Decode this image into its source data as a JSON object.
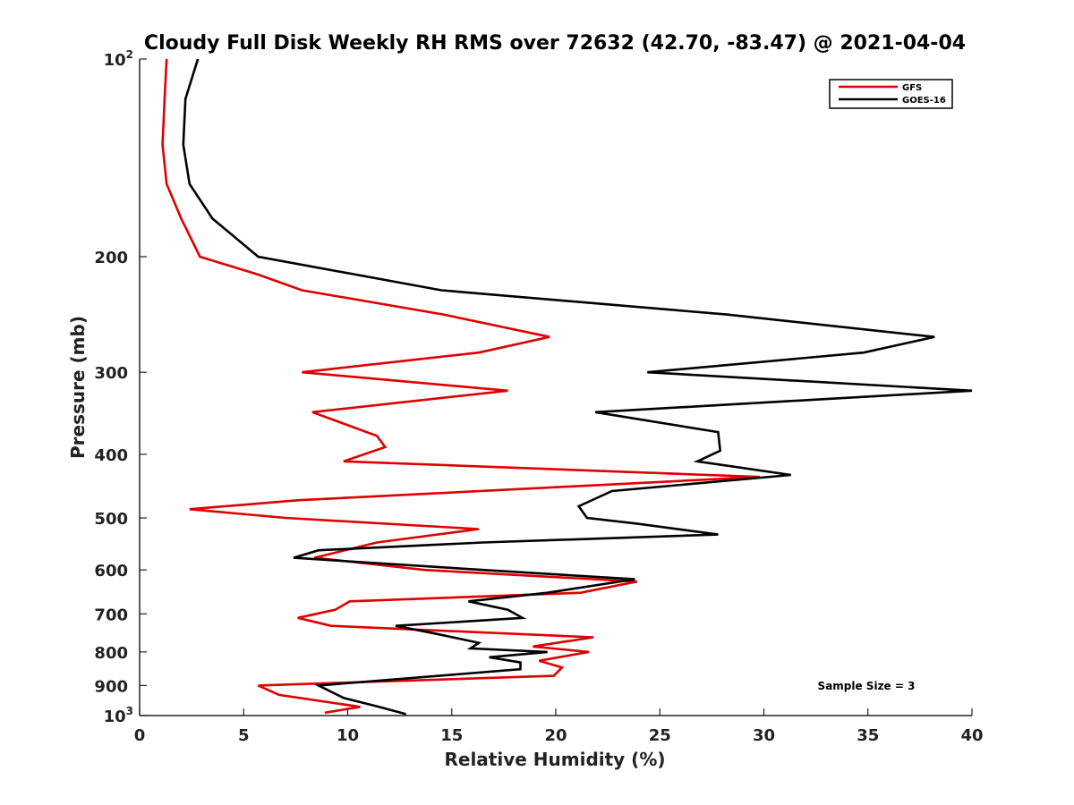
{
  "chart_data": {
    "type": "line",
    "title": "Cloudy Full Disk Weekly RH RMS over 72632 (42.70, -83.47) @ 2021-04-04",
    "xlabel": "Relative Humidity (%)",
    "ylabel": "Pressure (mb)",
    "xlim": [
      0,
      40
    ],
    "ylim": [
      100,
      1000
    ],
    "y_scale": "log",
    "y_reversed": true,
    "grid": false,
    "x_ticks": [
      "0",
      "5",
      "10",
      "15",
      "20",
      "25",
      "30",
      "35",
      "40"
    ],
    "y_ticks": [
      {
        "value": 100,
        "base": "10",
        "exp": "2"
      },
      {
        "value": 200,
        "label": "200"
      },
      {
        "value": 300,
        "label": "300"
      },
      {
        "value": 400,
        "label": "400"
      },
      {
        "value": 500,
        "label": "500"
      },
      {
        "value": 600,
        "label": "600"
      },
      {
        "value": 700,
        "label": "700"
      },
      {
        "value": 800,
        "label": "800"
      },
      {
        "value": 900,
        "label": "900"
      },
      {
        "value": 1000,
        "base": "10",
        "exp": "3"
      }
    ],
    "legend": {
      "placement": "top-right",
      "entries": [
        {
          "label": "GFS",
          "color": "#e00000"
        },
        {
          "label": "GOES-16",
          "color": "#000000"
        }
      ]
    },
    "annotation": "Sample Size = 3",
    "series": [
      {
        "name": "GFS",
        "color": "#e00000",
        "points": [
          [
            1.3,
            100
          ],
          [
            1.2,
            115
          ],
          [
            1.1,
            135
          ],
          [
            1.3,
            155
          ],
          [
            2.0,
            175
          ],
          [
            2.9,
            200
          ],
          [
            5.7,
            213
          ],
          [
            7.8,
            225
          ],
          [
            14.6,
            245
          ],
          [
            19.7,
            265
          ],
          [
            16.3,
            280
          ],
          [
            7.8,
            300
          ],
          [
            17.7,
            320
          ],
          [
            8.3,
            345
          ],
          [
            11.4,
            375
          ],
          [
            11.8,
            390
          ],
          [
            9.8,
            410
          ],
          [
            29.8,
            433
          ],
          [
            7.6,
            470
          ],
          [
            2.4,
            485
          ],
          [
            7.0,
            500
          ],
          [
            16.3,
            520
          ],
          [
            11.4,
            545
          ],
          [
            8.4,
            575
          ],
          [
            13.7,
            600
          ],
          [
            23.9,
            625
          ],
          [
            21.2,
            650
          ],
          [
            10.1,
            670
          ],
          [
            9.4,
            690
          ],
          [
            7.6,
            710
          ],
          [
            9.2,
            730
          ],
          [
            21.8,
            760
          ],
          [
            18.9,
            785
          ],
          [
            21.6,
            800
          ],
          [
            19.2,
            825
          ],
          [
            20.3,
            845
          ],
          [
            19.9,
            870
          ],
          [
            5.7,
            900
          ],
          [
            6.7,
            930
          ],
          [
            10.6,
            970
          ],
          [
            8.9,
            990
          ]
        ]
      },
      {
        "name": "GOES-16",
        "color": "#000000",
        "points": [
          [
            2.8,
            100
          ],
          [
            2.2,
            115
          ],
          [
            2.1,
            135
          ],
          [
            2.4,
            155
          ],
          [
            3.5,
            175
          ],
          [
            5.7,
            200
          ],
          [
            14.5,
            225
          ],
          [
            28.2,
            245
          ],
          [
            38.2,
            265
          ],
          [
            34.8,
            280
          ],
          [
            24.4,
            300
          ],
          [
            40.0,
            320
          ],
          [
            21.9,
            345
          ],
          [
            27.8,
            370
          ],
          [
            27.9,
            395
          ],
          [
            26.8,
            410
          ],
          [
            31.3,
            430
          ],
          [
            22.7,
            455
          ],
          [
            21.1,
            480
          ],
          [
            21.5,
            500
          ],
          [
            23.9,
            510
          ],
          [
            27.8,
            530
          ],
          [
            16.5,
            545
          ],
          [
            8.6,
            560
          ],
          [
            7.4,
            575
          ],
          [
            16.5,
            600
          ],
          [
            23.8,
            620
          ],
          [
            19.6,
            650
          ],
          [
            15.8,
            670
          ],
          [
            17.7,
            690
          ],
          [
            18.4,
            710
          ],
          [
            12.3,
            730
          ],
          [
            14.2,
            750
          ],
          [
            16.3,
            775
          ],
          [
            15.9,
            790
          ],
          [
            19.6,
            800
          ],
          [
            16.8,
            815
          ],
          [
            18.3,
            830
          ],
          [
            18.3,
            850
          ],
          [
            8.6,
            900
          ],
          [
            9.8,
            940
          ],
          [
            11.5,
            970
          ],
          [
            12.8,
            995
          ]
        ]
      }
    ]
  }
}
